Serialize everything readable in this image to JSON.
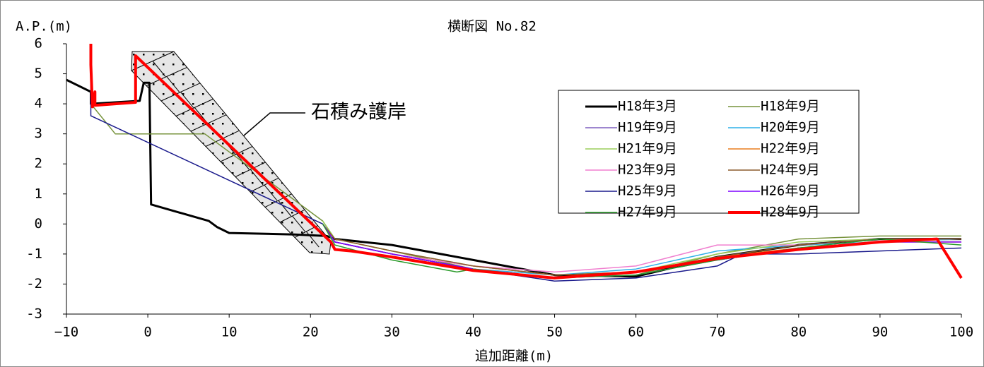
{
  "chart_data": {
    "type": "line",
    "title": "横断図 No.82",
    "y_label": "A.P.(m)",
    "x_label": "追加距離(m)",
    "annotation": "石積み護岸",
    "xlim": [
      -10,
      100
    ],
    "xticks": [
      {
        "value": -10,
        "label": "−10"
      },
      0,
      10,
      20,
      30,
      40,
      50,
      60,
      70,
      80,
      90,
      100
    ],
    "ylim": [
      -3,
      6
    ],
    "yticks": [
      -3,
      -2,
      -1,
      0,
      1,
      2,
      3,
      4,
      5,
      6
    ],
    "series": [
      {
        "name": "H18年3月",
        "color": "#000000",
        "linewidth": 3,
        "x": [
          -10,
          -7,
          -7,
          -1,
          -0.5,
          0.2,
          0.4,
          7.5,
          8.5,
          10,
          18,
          22,
          23,
          30,
          40,
          50,
          60,
          70,
          80,
          90,
          100
        ],
        "values": [
          4.8,
          4.4,
          4.0,
          4.1,
          4.7,
          4.7,
          0.65,
          0.1,
          -0.1,
          -0.3,
          -0.35,
          -0.4,
          -0.5,
          -0.7,
          -1.2,
          -1.7,
          -1.75,
          -1.1,
          -0.7,
          -0.5,
          -0.5
        ]
      },
      {
        "name": "H18年9月",
        "color": "#77933c",
        "linewidth": 1.5,
        "x": [
          -7,
          -4,
          7,
          21.5,
          23,
          30,
          40,
          50,
          60,
          70,
          80,
          90,
          100
        ],
        "values": [
          4.0,
          3.0,
          3.0,
          0.1,
          -0.5,
          -0.9,
          -1.5,
          -1.8,
          -1.7,
          -1.0,
          -0.5,
          -0.4,
          -0.4
        ]
      },
      {
        "name": "H19年9月",
        "color": "#7f5fbf",
        "linewidth": 1.5,
        "x": [
          21.5,
          23,
          30,
          40,
          50,
          60,
          70,
          80,
          90,
          100
        ],
        "values": [
          0.0,
          -0.6,
          -1.0,
          -1.5,
          -1.8,
          -1.7,
          -1.2,
          -0.8,
          -0.6,
          -0.6
        ]
      },
      {
        "name": "H20年9月",
        "color": "#2eb0e8",
        "linewidth": 1.5,
        "x": [
          21.5,
          23,
          30,
          40,
          50,
          60,
          70,
          80,
          90,
          100
        ],
        "values": [
          0.0,
          -0.6,
          -1.0,
          -1.5,
          -1.7,
          -1.5,
          -0.9,
          -0.7,
          -0.6,
          -0.5
        ]
      },
      {
        "name": "H21年9月",
        "color": "#9acd5a",
        "linewidth": 1.5,
        "x": [
          21.5,
          23,
          30,
          40,
          50,
          60,
          70,
          80,
          90,
          100
        ],
        "values": [
          0.1,
          -0.5,
          -0.9,
          -1.4,
          -1.7,
          -1.6,
          -1.0,
          -0.6,
          -0.5,
          -0.5
        ]
      },
      {
        "name": "H22年9月",
        "color": "#e87d1e",
        "linewidth": 1.5,
        "x": [
          21.5,
          23,
          30,
          40,
          50,
          60,
          70,
          80,
          90,
          100
        ],
        "values": [
          0.0,
          -0.6,
          -1.0,
          -1.4,
          -1.7,
          -1.6,
          -1.1,
          -0.8,
          -0.6,
          -0.6
        ]
      },
      {
        "name": "H23年9月",
        "color": "#f07fcf",
        "linewidth": 1.5,
        "x": [
          21.5,
          23,
          30,
          40,
          50,
          60,
          70,
          80,
          90,
          100
        ],
        "values": [
          0.0,
          -0.6,
          -1.0,
          -1.4,
          -1.6,
          -1.4,
          -0.7,
          -0.7,
          -0.5,
          -0.5
        ]
      },
      {
        "name": "H24年9月",
        "color": "#8b5a2b",
        "linewidth": 1.5,
        "x": [
          21.5,
          23,
          30,
          40,
          50,
          60,
          70,
          80,
          90,
          100
        ],
        "values": [
          0.0,
          -0.5,
          -0.9,
          -1.4,
          -1.7,
          -1.6,
          -1.1,
          -0.7,
          -0.5,
          -0.5
        ]
      },
      {
        "name": "H25年9月",
        "color": "#1a1a8c",
        "linewidth": 1.5,
        "x": [
          -7,
          -7,
          21.5,
          23,
          30,
          40,
          50,
          60,
          70,
          73,
          80,
          90,
          100
        ],
        "values": [
          6.0,
          3.6,
          0.0,
          -0.6,
          -1.0,
          -1.5,
          -1.9,
          -1.8,
          -1.4,
          -1.0,
          -1.0,
          -0.9,
          -0.8
        ]
      },
      {
        "name": "H26年9月",
        "color": "#7f00ff",
        "linewidth": 1.5,
        "x": [
          21.5,
          23,
          30,
          40,
          50,
          60,
          70,
          80,
          90,
          100
        ],
        "values": [
          0.0,
          -0.6,
          -1.0,
          -1.5,
          -1.8,
          -1.6,
          -1.2,
          -0.8,
          -0.6,
          -0.6
        ]
      },
      {
        "name": "H27年9月",
        "color": "#2a9a2a",
        "linewidth": 1.5,
        "x": [
          21.5,
          23,
          30,
          38,
          40,
          50,
          60,
          70,
          80,
          90,
          100
        ],
        "values": [
          0.0,
          -0.7,
          -1.2,
          -1.6,
          -1.5,
          -1.8,
          -1.7,
          -1.2,
          -0.8,
          -0.5,
          -0.7
        ]
      },
      {
        "name": "H28年9月",
        "color": "#ff0000",
        "linewidth": 4,
        "x": [
          -7,
          -7,
          -6.8,
          -6.5,
          -6.5,
          -1.5,
          -1.5,
          22.5,
          23,
          25,
          30,
          40,
          50,
          60,
          70,
          80,
          90,
          97,
          100
        ],
        "values": [
          6.0,
          5.3,
          3.9,
          4.4,
          3.95,
          4.05,
          5.6,
          -0.6,
          -0.85,
          -0.9,
          -1.1,
          -1.55,
          -1.8,
          -1.6,
          -1.15,
          -0.85,
          -0.6,
          -0.5,
          -1.8
        ]
      }
    ]
  }
}
